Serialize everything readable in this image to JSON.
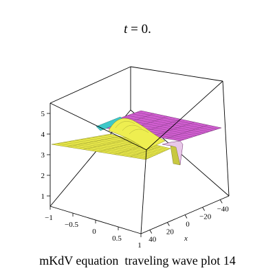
{
  "title": {
    "var": "t",
    "rest": " = 0."
  },
  "caption": "mKdV equation  traveling wave plot 14",
  "chart_data": {
    "type": "surface",
    "time": 0,
    "xlabel": "x",
    "ylabel": "",
    "zlabel": "",
    "x_ticks": [
      "40",
      "20",
      "0",
      "−20",
      "−40"
    ],
    "y_ticks": [
      "−1",
      "−0.5",
      "0",
      "0.5",
      "1"
    ],
    "z_ticks": [
      "1",
      "2",
      "3",
      "4",
      "5"
    ],
    "xlim": [
      -50,
      50
    ],
    "ylim": [
      -1,
      1
    ],
    "zlim": [
      0.5,
      5.5
    ],
    "surface": {
      "left_plateau_level": 3.4,
      "right_plateau_level": 4.0,
      "bump_peak": 4.4,
      "dip_min": 2.6,
      "colors": {
        "low": "#e8e84a",
        "high": "#d860d8",
        "edge": "#40c8c8"
      }
    },
    "grid": false,
    "box": true
  }
}
